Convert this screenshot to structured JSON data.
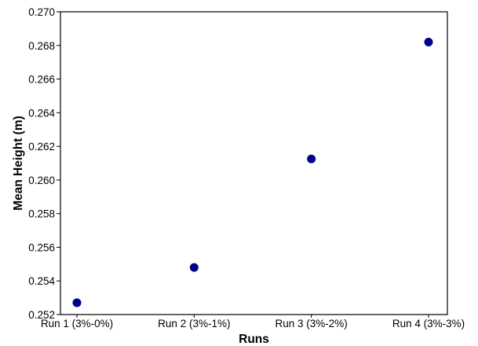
{
  "chart_data": {
    "type": "scatter",
    "categories": [
      "Run 1 (3%-0%)",
      "Run 2 (3%-1%)",
      "Run 3 (3%-2%)",
      "Run 4 (3%-3%)"
    ],
    "values": [
      0.2527,
      0.2548,
      0.26125,
      0.2682
    ],
    "title": "",
    "xlabel": "Runs",
    "ylabel": "Mean Height (m)",
    "ylim": [
      0.252,
      0.27
    ],
    "yticks": [
      "0.252",
      "0.254",
      "0.256",
      "0.258",
      "0.260",
      "0.262",
      "0.264",
      "0.266",
      "0.268",
      "0.270"
    ],
    "grid": false,
    "marker_color": "#00008b"
  }
}
